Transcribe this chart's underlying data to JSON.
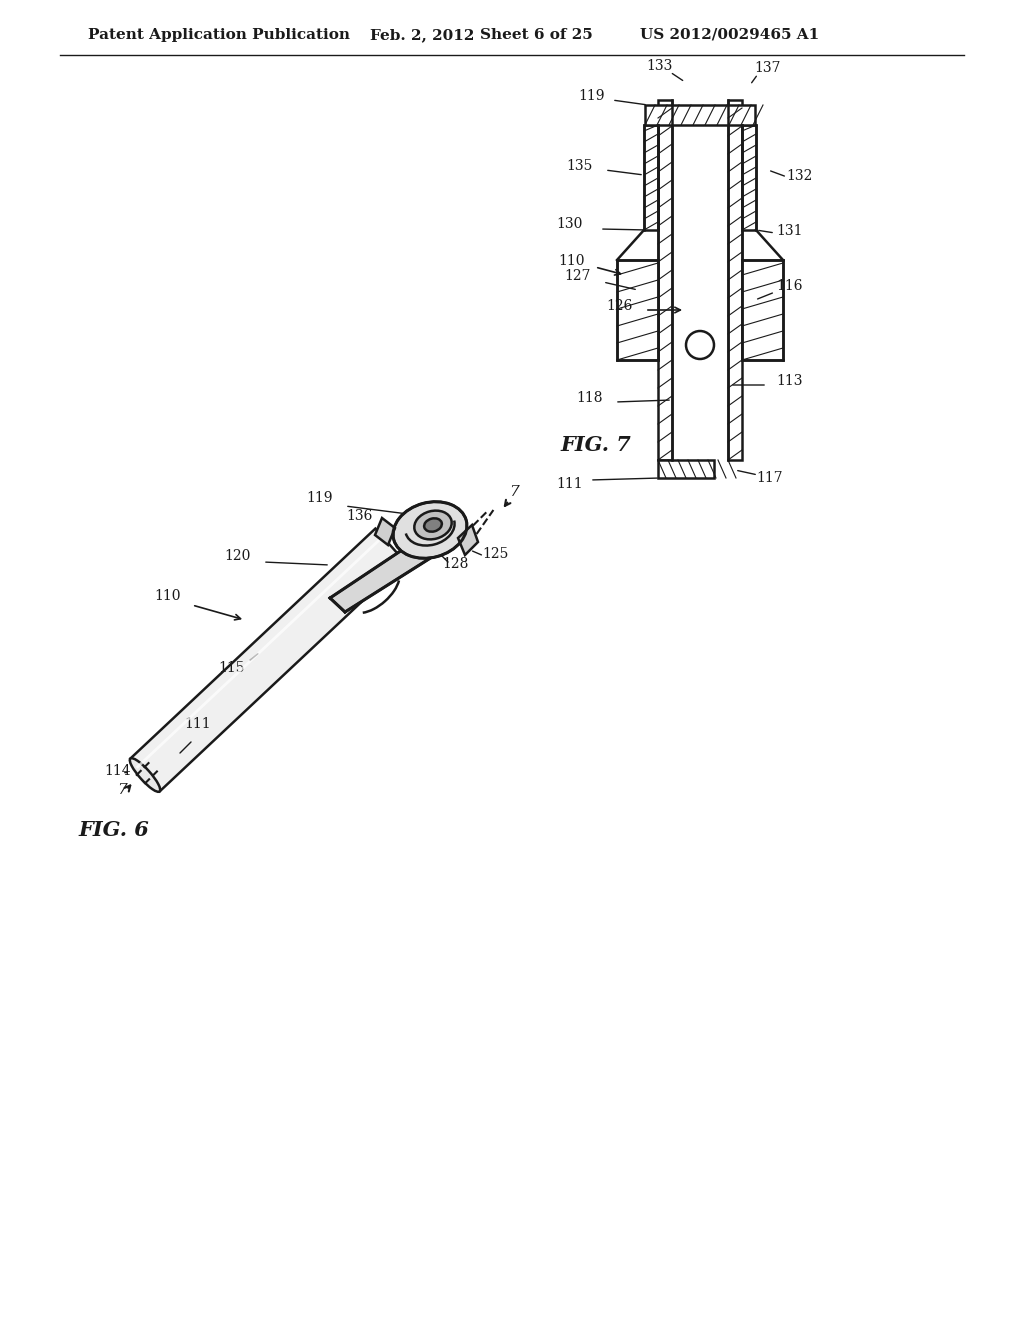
{
  "bg_color": "#ffffff",
  "header_text": "Patent Application Publication",
  "header_date": "Feb. 2, 2012",
  "header_sheet": "Sheet 6 of 25",
  "header_patent": "US 2012/0029465 A1",
  "fig6_label": "FIG. 6",
  "fig7_label": "FIG. 7",
  "line_color": "#1a1a1a",
  "hatch_color": "#1a1a1a",
  "annotation_color": "#1a1a1a",
  "font_size_header": 11,
  "font_size_label": 14,
  "font_size_ref": 10
}
